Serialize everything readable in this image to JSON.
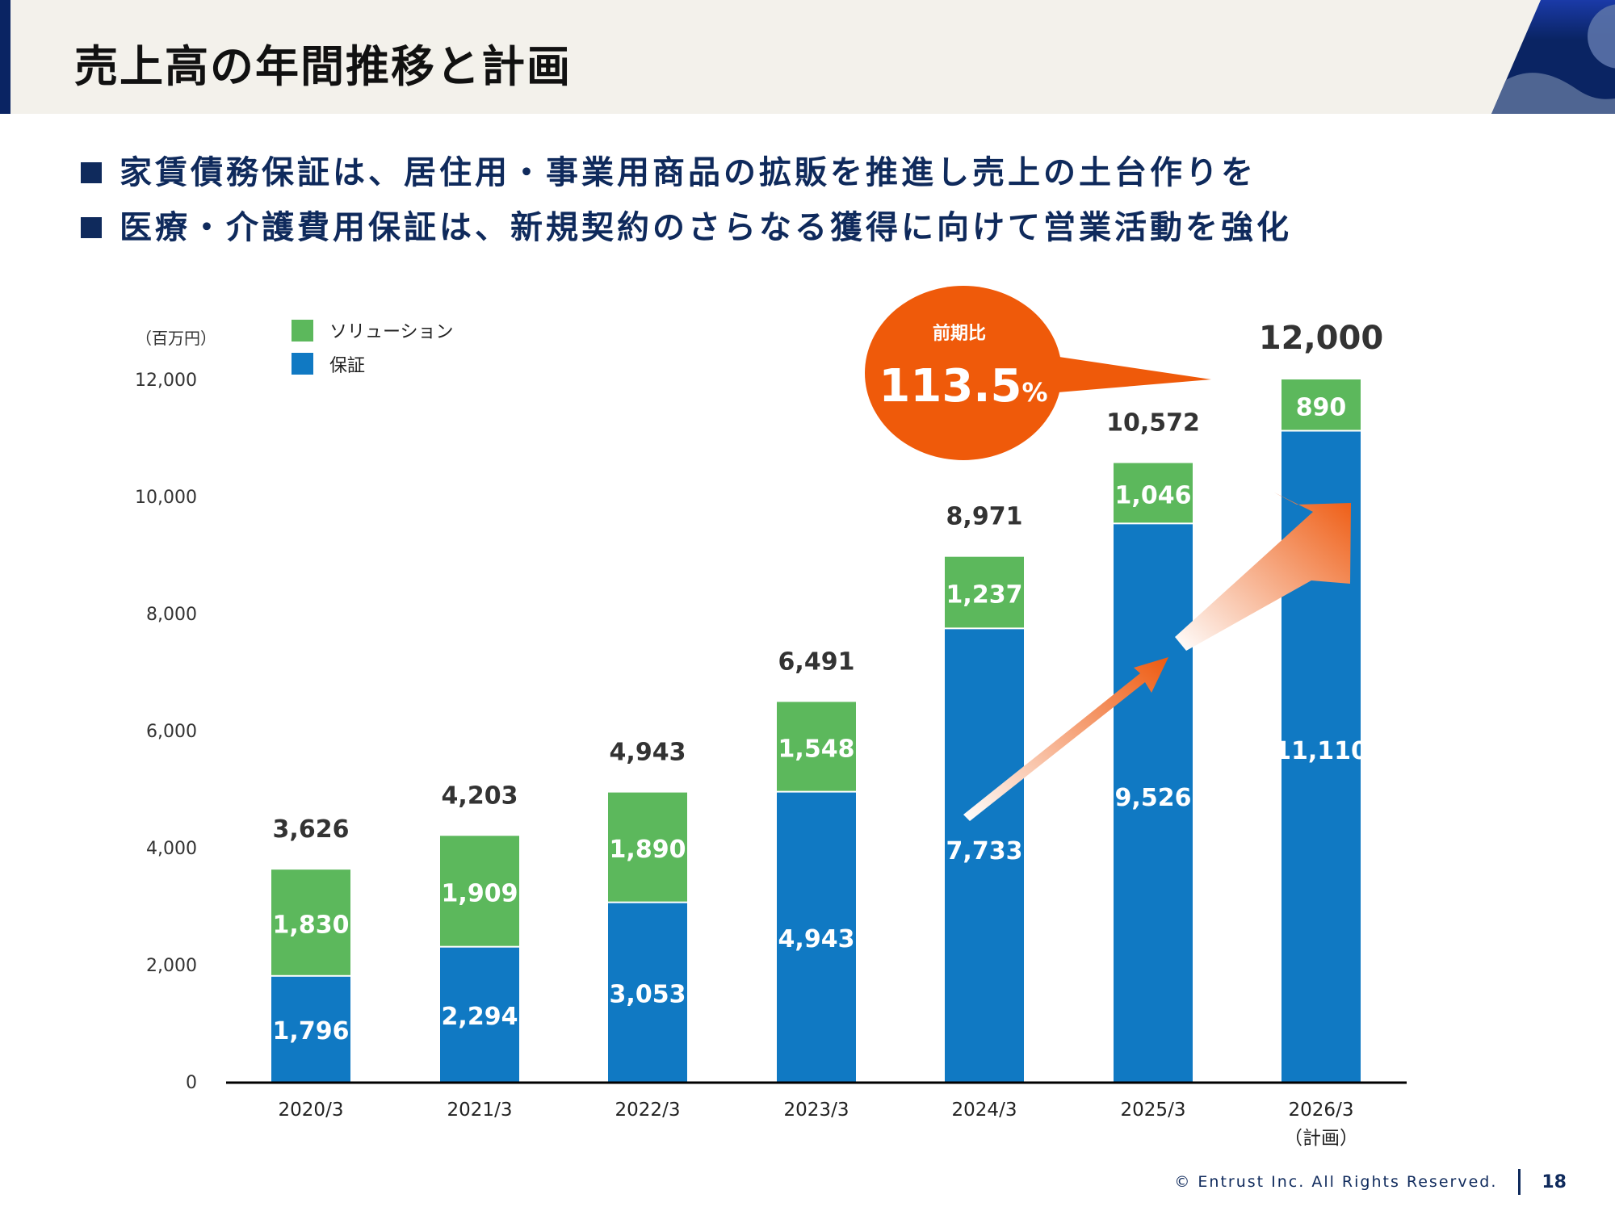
{
  "header": {
    "title": "売上高の年間推移と計画",
    "accent_color": "#0a2463"
  },
  "bullets": [
    "家賃債務保証は、居住用・事業用商品の拡販を推進し売上の土台作りを",
    "医療・介護費用保証は、新規契約のさらなる獲得に向けて営業活動を強化"
  ],
  "callout": {
    "label": "前期比",
    "value": "113.5",
    "unit": "%",
    "color": "#ef5a0a"
  },
  "chart_data": {
    "type": "bar",
    "stacked": true,
    "title": "",
    "ylabel": "（百万円）",
    "xlabel": "",
    "ylim": [
      0,
      12000
    ],
    "yticks": [
      0,
      2000,
      4000,
      6000,
      8000,
      10000,
      12000
    ],
    "ytick_labels": [
      "0",
      "2,000",
      "4,000",
      "6,000",
      "8,000",
      "10,000",
      "12,000"
    ],
    "grid": false,
    "legend_position": "top-left",
    "categories": [
      "2020/3",
      "2021/3",
      "2022/3",
      "2023/3",
      "2024/3",
      "2025/3",
      "2026/3"
    ],
    "category_sublabels": [
      "",
      "",
      "",
      "",
      "",
      "",
      "（計画）"
    ],
    "series": [
      {
        "name": "保証",
        "color": "#1079c3",
        "values": [
          1796,
          2294,
          3053,
          4943,
          7733,
          9526,
          11110
        ],
        "labels": [
          "1,796",
          "2,294",
          "3,053",
          "4,943",
          "7,733",
          "9,526",
          "11,110"
        ]
      },
      {
        "name": "ソリューション",
        "color": "#5cb85c",
        "values": [
          1830,
          1909,
          1890,
          1548,
          1237,
          1046,
          890
        ],
        "labels": [
          "1,830",
          "1,909",
          "1,890",
          "1,548",
          "1,237",
          "1,046",
          "890"
        ]
      }
    ],
    "totals": [
      3626,
      4203,
      4943,
      6491,
      8971,
      10572,
      12000
    ],
    "total_labels": [
      "3,626",
      "4,203",
      "4,943",
      "6,491",
      "8,971",
      "10,572",
      "12,000"
    ],
    "legend": [
      {
        "name": "ソリューション",
        "color": "#5cb85c"
      },
      {
        "name": "保証",
        "color": "#1079c3"
      }
    ]
  },
  "footer": {
    "copyright": "© Entrust Inc. All Rights Reserved.",
    "page": "18"
  }
}
